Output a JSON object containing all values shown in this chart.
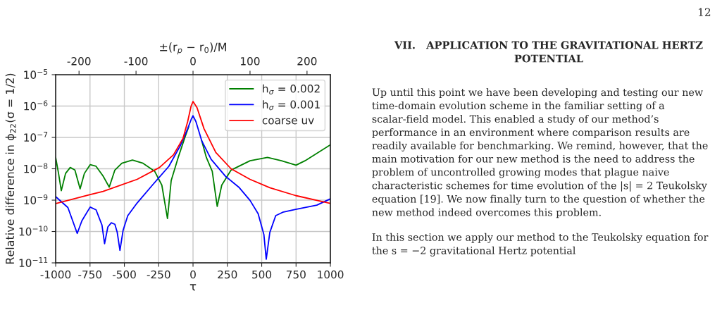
{
  "chart_data": {
    "type": "line",
    "xlabel": "τ",
    "ylabel": "Relative difference in ϕ$_{22}$(σ = 1/2)",
    "x2label": "±(r$_{p}$ − r$_{0}$)/M",
    "xlim": [
      -1000,
      1000
    ],
    "xticks": [
      -1000,
      -750,
      -500,
      -250,
      0,
      250,
      500,
      750,
      1000
    ],
    "x2lim": [
      -241,
      241
    ],
    "x2ticks": [
      -200,
      -100,
      0,
      100,
      200
    ],
    "log": "y",
    "ylim": [
      1e-11,
      1e-05
    ],
    "yticks": [
      {
        "value": 1e-11,
        "label": "10$^{−11}$"
      },
      {
        "value": 1e-10,
        "label": "10$^{−10}$"
      },
      {
        "value": 1e-09,
        "label": "10$^{−9}$"
      },
      {
        "value": 1e-08,
        "label": "10$^{−8}$"
      },
      {
        "value": 1e-07,
        "label": "10$^{−7}$"
      },
      {
        "value": 1e-06,
        "label": "10$^{−6}$"
      },
      {
        "value": 1e-05,
        "label": "10$^{−5}$"
      }
    ],
    "grid": true,
    "legend": "top right",
    "series": [
      {
        "name": "h$_{σ}$ = 0.002",
        "color": "#008000",
        "x": [
          -1000,
          -979,
          -959,
          -928,
          -894,
          -860,
          -822,
          -791,
          -749,
          -706,
          -655,
          -610,
          -569,
          -518,
          -441,
          -364,
          -279,
          -227,
          -186,
          -159,
          -108,
          -56,
          -31,
          -14,
          0,
          21,
          63,
          97,
          140,
          176,
          209,
          277,
          415,
          542,
          644,
          750,
          815,
          1000
        ],
        "values": [
          2.3e-08,
          7.1e-09,
          2e-09,
          7.1e-09,
          1.1e-08,
          9.1e-09,
          2.3e-09,
          7.1e-09,
          1.35e-08,
          1.2e-08,
          5.9e-09,
          2.6e-09,
          9.1e-09,
          1.5e-08,
          1.9e-08,
          1.5e-08,
          8.3e-09,
          3e-09,
          2.6e-10,
          4.2e-09,
          2.3e-08,
          1.1e-07,
          2.2e-07,
          null,
          null,
          null,
          7.9e-08,
          2.3e-08,
          8.3e-09,
          6.3e-10,
          3e-09,
          9.1e-09,
          1.8e-08,
          2.3e-08,
          1.8e-08,
          1.3e-08,
          1.8e-08,
          5.8e-08
        ]
      },
      {
        "name": "h$_{σ}$ = 0.001",
        "color": "#0000ff",
        "x": [
          -1000,
          -911,
          -843,
          -809,
          -749,
          -706,
          -663,
          -644,
          -620,
          -595,
          -569,
          -552,
          -532,
          -509,
          -475,
          -407,
          -296,
          -176,
          -91,
          -39,
          -14,
          0,
          21,
          63,
          132,
          234,
          337,
          415,
          474,
          516,
          533,
          559,
          602,
          653,
          747,
          901,
          1000
        ],
        "values": [
          1.3e-09,
          5.8e-10,
          8.7e-11,
          2.2e-10,
          6e-10,
          4.9e-10,
          1.6e-10,
          4.1e-11,
          1.4e-10,
          1.9e-10,
          1.7e-10,
          9.5e-11,
          2.5e-11,
          1.1e-10,
          3.2e-10,
          8.1e-10,
          3e-09,
          1.2e-08,
          5.6e-08,
          1.9e-07,
          3.7e-07,
          4.9e-07,
          3.2e-07,
          7.9e-08,
          2e-08,
          5.9e-09,
          2.5e-09,
          9.8e-10,
          3.7e-10,
          7.9e-11,
          1.3e-11,
          9.3e-11,
          3.2e-10,
          4.1e-10,
          5.1e-10,
          6.9e-10,
          1.1e-09
        ]
      },
      {
        "name": "coarse uv",
        "color": "#ff0000",
        "x": [
          -1000,
          -749,
          -655,
          -407,
          -244,
          -142,
          -73,
          -39,
          -14,
          0,
          29,
          80,
          166,
          277,
          415,
          559,
          747,
          1000
        ],
        "values": [
          7.8e-10,
          1.5e-09,
          1.9e-09,
          4.6e-09,
          1.1e-08,
          2.8e-08,
          9.3e-08,
          3.2e-07,
          1e-06,
          1.4e-06,
          8.9e-07,
          1.9e-07,
          3.3e-08,
          1e-08,
          4.6e-09,
          2.5e-09,
          1.4e-09,
          7.9e-10
        ]
      }
    ],
    "annotations": [
      "12",
      "VII.   APPLICATION TO THE GRAVITATIONAL HERTZ POTENTIAL",
      "Up until this point we have been developing and testing our new time-domain evolution scheme in the familiar setting of a scalar-field model. This enabled a study of our method’s performance in an environment where comparison results are readily available for benchmarking. We remind, however, that the main motivation for our new method is the need to address the problem of uncontrolled growing modes that plague naive characteristic schemes for time evolution of the |s| = 2 Teukolsky equation [19]. We now finally turn to the question of whether the new method indeed overcomes this problem.",
      "In this section we apply our method to the Teukolsky equation for the s = −2 gravitational Hertz potential"
    ]
  }
}
